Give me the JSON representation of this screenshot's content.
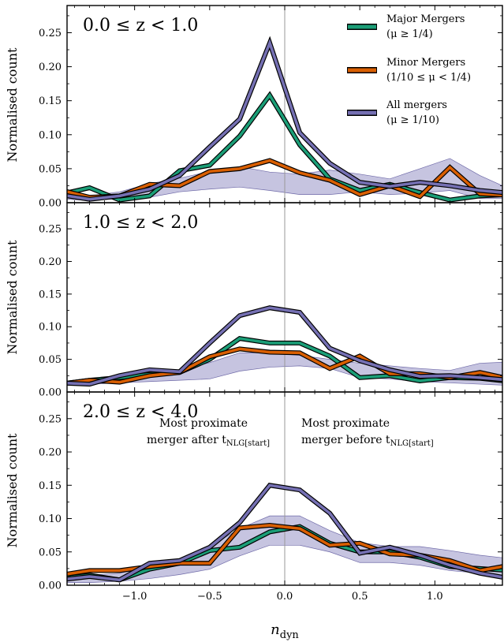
{
  "colors": {
    "major": "#1b9e77",
    "minor": "#d95f02",
    "all": "#7570b3",
    "band": "#b3b0d6",
    "outline": "#000000"
  },
  "chart_data": {
    "type": "line",
    "xlabel": "n_dyn",
    "ylabel": "Normalised count",
    "xlim": [
      -1.45,
      1.45
    ],
    "ylim": [
      0,
      0.29
    ],
    "xticks": [
      -1.0,
      -0.5,
      0.0,
      0.5,
      1.0
    ],
    "xticklabels": [
      "−1.0",
      "−0.5",
      "0.0",
      "0.5",
      "1.0"
    ],
    "yticks": [
      0.0,
      0.05,
      0.1,
      0.15,
      0.2,
      0.25
    ],
    "yticklabels": [
      "0.00",
      "0.05",
      "0.10",
      "0.15",
      "0.20",
      "0.25"
    ],
    "vline": 0.0,
    "legend": {
      "placement": "top-right",
      "entries": [
        {
          "series": "major",
          "line1": "Major Mergers",
          "line2": "(μ ≥ 1/4)"
        },
        {
          "series": "minor",
          "line1": "Minor Mergers",
          "line2": "(1/10 ≤ μ < 1/4)"
        },
        {
          "series": "all",
          "line1": "All mergers",
          "line2": "(μ ≥ 1/10)"
        }
      ]
    },
    "x": [
      -1.5,
      -1.3,
      -1.1,
      -0.9,
      -0.7,
      -0.5,
      -0.3,
      -0.1,
      0.1,
      0.3,
      0.5,
      0.7,
      0.9,
      1.1,
      1.3,
      1.5
    ],
    "panels": [
      {
        "title": "0.0 ≤ z < 1.0",
        "series": {
          "major": [
            0.012,
            0.022,
            0.004,
            0.01,
            0.047,
            0.055,
            0.098,
            0.158,
            0.085,
            0.035,
            0.018,
            0.027,
            0.015,
            0.004,
            0.01,
            0.012
          ],
          "minor": [
            0.019,
            0.008,
            0.01,
            0.027,
            0.025,
            0.046,
            0.05,
            0.062,
            0.044,
            0.033,
            0.012,
            0.025,
            0.009,
            0.052,
            0.013,
            0.011
          ],
          "all": [
            0.012,
            0.005,
            0.01,
            0.02,
            0.04,
            0.082,
            0.123,
            0.235,
            0.103,
            0.058,
            0.03,
            0.024,
            0.03,
            0.025,
            0.018,
            0.014
          ]
        },
        "band_lower": [
          0.006,
          0.003,
          0.006,
          0.008,
          0.016,
          0.02,
          0.023,
          0.018,
          0.012,
          0.012,
          0.016,
          0.012,
          0.014,
          0.018,
          0.006,
          0.006
        ],
        "band_upper": [
          0.012,
          0.01,
          0.016,
          0.028,
          0.036,
          0.046,
          0.053,
          0.045,
          0.042,
          0.048,
          0.042,
          0.035,
          0.05,
          0.065,
          0.04,
          0.02
        ]
      },
      {
        "title": "1.0 ≤ z < 2.0",
        "series": {
          "major": [
            0.012,
            0.018,
            0.022,
            0.027,
            0.03,
            0.05,
            0.082,
            0.075,
            0.075,
            0.055,
            0.022,
            0.025,
            0.017,
            0.022,
            0.021,
            0.016
          ],
          "minor": [
            0.012,
            0.018,
            0.015,
            0.025,
            0.03,
            0.054,
            0.066,
            0.061,
            0.06,
            0.036,
            0.055,
            0.028,
            0.028,
            0.022,
            0.03,
            0.02
          ],
          "all": [
            0.014,
            0.012,
            0.025,
            0.034,
            0.031,
            0.075,
            0.117,
            0.129,
            0.122,
            0.067,
            0.048,
            0.034,
            0.024,
            0.025,
            0.022,
            0.018
          ]
        },
        "band_lower": [
          0.01,
          0.012,
          0.014,
          0.016,
          0.018,
          0.02,
          0.032,
          0.038,
          0.04,
          0.036,
          0.022,
          0.02,
          0.016,
          0.014,
          0.012,
          0.01
        ],
        "band_upper": [
          0.015,
          0.018,
          0.024,
          0.03,
          0.034,
          0.045,
          0.06,
          0.06,
          0.056,
          0.05,
          0.044,
          0.04,
          0.036,
          0.033,
          0.044,
          0.046
        ]
      },
      {
        "title": "2.0 ≤ z < 4.0",
        "annotations": {
          "left_line1": "Most proximate",
          "left_line2": "merger after t",
          "left_sub": "NLG[start]",
          "right_line1": "Most proximate",
          "right_line2": "merger before t",
          "right_sub": "NLG[start]"
        },
        "series": {
          "major": [
            0.01,
            0.015,
            0.008,
            0.024,
            0.033,
            0.052,
            0.057,
            0.08,
            0.088,
            0.063,
            0.05,
            0.05,
            0.042,
            0.028,
            0.025,
            0.022
          ],
          "minor": [
            0.015,
            0.022,
            0.022,
            0.028,
            0.033,
            0.033,
            0.086,
            0.09,
            0.085,
            0.06,
            0.063,
            0.047,
            0.045,
            0.037,
            0.022,
            0.03
          ],
          "all": [
            0.008,
            0.013,
            0.008,
            0.033,
            0.037,
            0.057,
            0.094,
            0.15,
            0.143,
            0.108,
            0.048,
            0.057,
            0.045,
            0.03,
            0.018,
            0.01
          ]
        },
        "band_lower": [
          0.004,
          0.004,
          0.006,
          0.01,
          0.016,
          0.024,
          0.044,
          0.06,
          0.06,
          0.05,
          0.034,
          0.034,
          0.03,
          0.022,
          0.018,
          0.014
        ],
        "band_upper": [
          0.012,
          0.015,
          0.018,
          0.028,
          0.04,
          0.058,
          0.085,
          0.104,
          0.104,
          0.082,
          0.064,
          0.058,
          0.058,
          0.052,
          0.045,
          0.04
        ]
      }
    ]
  }
}
